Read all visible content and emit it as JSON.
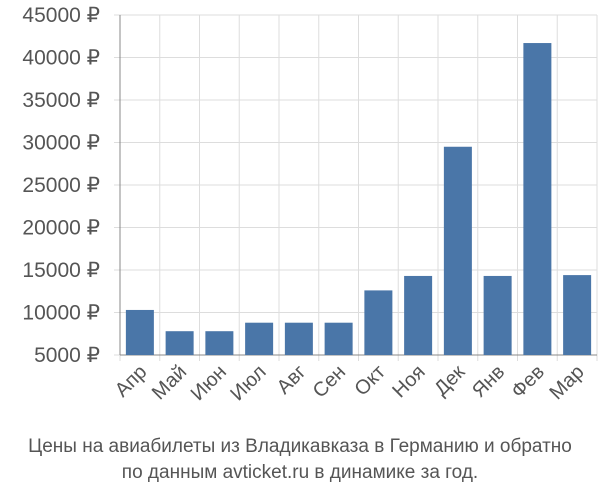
{
  "colors": {
    "bar": "#4a76a8",
    "grid": "#dddddd",
    "axis": "#888888",
    "text": "#555555"
  },
  "chart_data": {
    "type": "bar",
    "categories": [
      "Апр",
      "Май",
      "Июн",
      "Июл",
      "Авг",
      "Сен",
      "Окт",
      "Ноя",
      "Дек",
      "Янв",
      "Фев",
      "Мар"
    ],
    "values": [
      10300,
      7800,
      7800,
      8800,
      8800,
      8800,
      12600,
      14300,
      29500,
      14300,
      41700,
      14400
    ],
    "ylim": [
      5000,
      45000
    ],
    "yticks": [
      5000,
      10000,
      15000,
      20000,
      25000,
      30000,
      35000,
      40000,
      45000
    ],
    "ytick_labels": [
      "5000 ₽",
      "10000 ₽",
      "15000 ₽",
      "20000 ₽",
      "25000 ₽",
      "30000 ₽",
      "35000 ₽",
      "40000 ₽",
      "45000 ₽"
    ],
    "grid": true,
    "legend": "none"
  },
  "caption": {
    "line1": "Цены на авиабилеты из Владикавказа в Германию и обратно",
    "line2": "по данным avticket.ru в динамике за год."
  }
}
